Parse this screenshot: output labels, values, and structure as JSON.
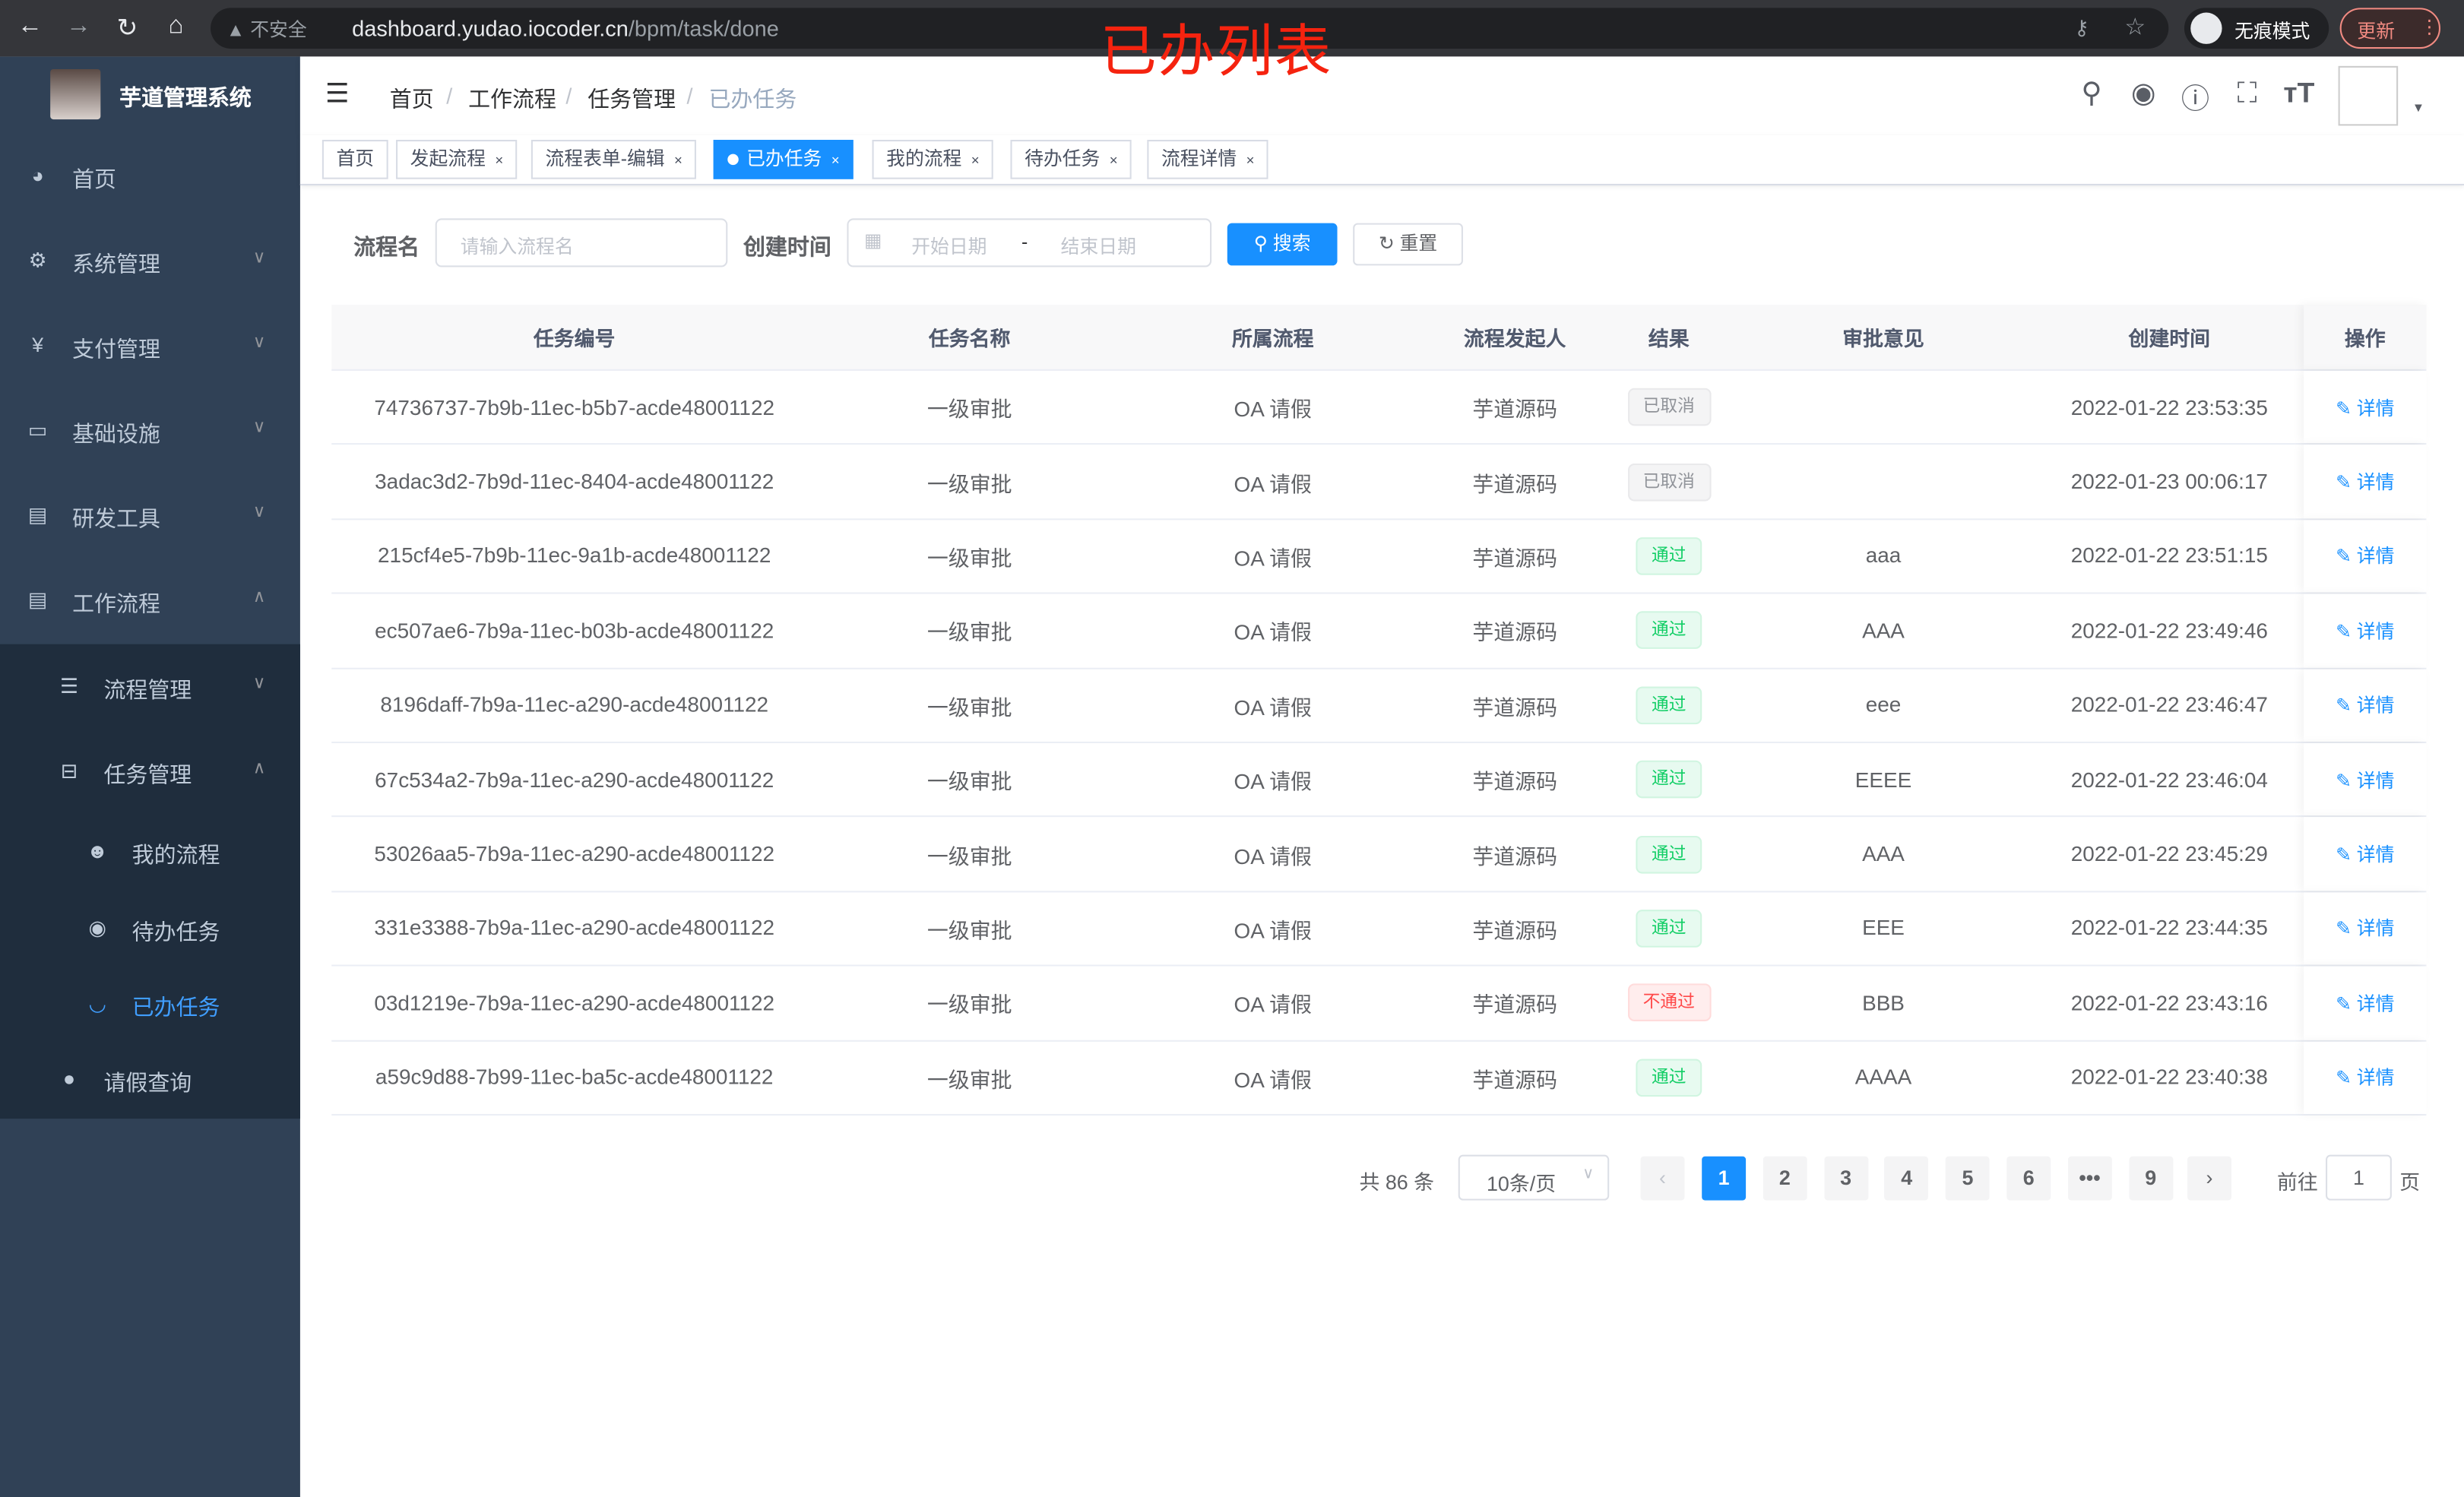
{
  "browser": {
    "security": "不安全",
    "url_host": "dashboard.yudao.iocoder.cn",
    "url_path": "/bpm/task/done",
    "incognito": "无痕模式",
    "update": "更新",
    "icons": [
      "back-icon",
      "forward-icon",
      "reload-icon",
      "home-icon",
      "key-icon",
      "star-icon"
    ]
  },
  "annotation": "已办列表",
  "sidebar": {
    "brand": "芋道管理系统",
    "items": [
      {
        "label": "首页",
        "icon": "dashboard-icon"
      },
      {
        "label": "系统管理",
        "icon": "gear-icon"
      },
      {
        "label": "支付管理",
        "icon": "yen-icon"
      },
      {
        "label": "基础设施",
        "icon": "monitor-icon"
      },
      {
        "label": "研发工具",
        "icon": "toolbox-icon"
      },
      {
        "label": "工作流程",
        "icon": "toolbox-icon"
      },
      {
        "label": "流程管理",
        "icon": "list-icon"
      },
      {
        "label": "任务管理",
        "icon": "tree-icon"
      },
      {
        "label": "我的流程",
        "icon": "people-icon"
      },
      {
        "label": "待办任务",
        "icon": "eye-icon"
      },
      {
        "label": "已办任务",
        "icon": "eye-closed-icon",
        "active": true
      },
      {
        "label": "请假查询",
        "icon": "user-icon"
      }
    ]
  },
  "breadcrumb": [
    "首页",
    "工作流程",
    "任务管理",
    "已办任务"
  ],
  "tags": [
    "首页",
    "发起流程",
    "流程表单-编辑",
    "已办任务",
    "我的流程",
    "待办任务",
    "流程详情"
  ],
  "filters": {
    "name_label": "流程名",
    "name_placeholder": "请输入流程名",
    "time_label": "创建时间",
    "start_placeholder": "开始日期",
    "sep": "-",
    "end_placeholder": "结束日期",
    "search": "搜索",
    "reset": "重置"
  },
  "table": {
    "headers": [
      "任务编号",
      "任务名称",
      "所属流程",
      "流程发起人",
      "结果",
      "审批意见",
      "创建时间",
      "操作"
    ],
    "rows": [
      [
        "74736737-7b9b-11ec-b5b7-acde48001122",
        "一级审批",
        "OA 请假",
        "芋道源码",
        "已取消",
        "",
        "2022-01-22 23:53:35",
        "详情"
      ],
      [
        "3adac3d2-7b9d-11ec-8404-acde48001122",
        "一级审批",
        "OA 请假",
        "芋道源码",
        "已取消",
        "",
        "2022-01-23 00:06:17",
        "详情"
      ],
      [
        "215cf4e5-7b9b-11ec-9a1b-acde48001122",
        "一级审批",
        "OA 请假",
        "芋道源码",
        "通过",
        "aaa",
        "2022-01-22 23:51:15",
        "详情"
      ],
      [
        "ec507ae6-7b9a-11ec-b03b-acde48001122",
        "一级审批",
        "OA 请假",
        "芋道源码",
        "通过",
        "AAA",
        "2022-01-22 23:49:46",
        "详情"
      ],
      [
        "8196daff-7b9a-11ec-a290-acde48001122",
        "一级审批",
        "OA 请假",
        "芋道源码",
        "通过",
        "eee",
        "2022-01-22 23:46:47",
        "详情"
      ],
      [
        "67c534a2-7b9a-11ec-a290-acde48001122",
        "一级审批",
        "OA 请假",
        "芋道源码",
        "通过",
        "EEEE",
        "2022-01-22 23:46:04",
        "详情"
      ],
      [
        "53026aa5-7b9a-11ec-a290-acde48001122",
        "一级审批",
        "OA 请假",
        "芋道源码",
        "通过",
        "AAA",
        "2022-01-22 23:45:29",
        "详情"
      ],
      [
        "331e3388-7b9a-11ec-a290-acde48001122",
        "一级审批",
        "OA 请假",
        "芋道源码",
        "通过",
        "EEE",
        "2022-01-22 23:44:35",
        "详情"
      ],
      [
        "03d1219e-7b9a-11ec-a290-acde48001122",
        "一级审批",
        "OA 请假",
        "芋道源码",
        "不通过",
        "BBB",
        "2022-01-22 23:43:16",
        "详情"
      ],
      [
        "a59c9d88-7b99-11ec-ba5c-acde48001122",
        "一级审批",
        "OA 请假",
        "芋道源码",
        "通过",
        "AAAA",
        "2022-01-22 23:40:38",
        "详情"
      ]
    ]
  },
  "pagination": {
    "total": "共 86 条",
    "page_size": "10条/页",
    "pages": [
      "1",
      "2",
      "3",
      "4",
      "5",
      "6",
      "•••",
      "9"
    ],
    "current": "1",
    "goto_label": "前往",
    "goto_value": "1",
    "goto_suffix": "页"
  },
  "colors": {
    "sidebar": "#304156",
    "submenu": "#1f2d3d",
    "accent": "#1890ff",
    "active_menu": "#409eff",
    "pass": "#13ce66",
    "fail": "#ff4949",
    "annotation": "#f5230f"
  }
}
